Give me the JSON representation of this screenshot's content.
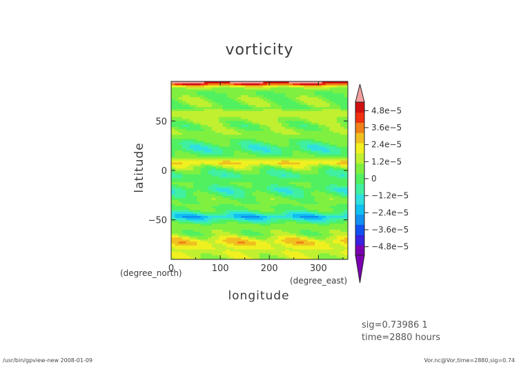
{
  "chart_data": {
    "type": "heatmap",
    "title": "vorticity",
    "xlabel": "longitude",
    "ylabel": "latitude",
    "x_unit": "(degree_east)",
    "y_unit": "(degree_north)",
    "xlim": [
      0,
      360
    ],
    "ylim": [
      -90,
      90
    ],
    "x_ticks": [
      0,
      100,
      200,
      300
    ],
    "y_ticks": [
      -50,
      0,
      50
    ],
    "x_tick_labels": [
      "0",
      "100",
      "200",
      "300"
    ],
    "y_tick_labels": [
      "−50",
      "0",
      "50"
    ],
    "colorbar": {
      "range": [
        -5.4e-05,
        5.4e-05
      ],
      "tick_values": [
        4.8e-05,
        3.6e-05,
        2.4e-05,
        1.2e-05,
        0,
        -1.2e-05,
        -2.4e-05,
        -3.6e-05,
        -4.8e-05
      ],
      "tick_labels": [
        "4.8e−5",
        "3.6e−5",
        "2.4e−5",
        "1.2e−5",
        "0",
        "−1.2e−5",
        "−2.4e−5",
        "−3.6e−5",
        "−4.8e−5"
      ],
      "colors": [
        "#7a00b0",
        "#3a20e0",
        "#1050f0",
        "#1090f0",
        "#10c0f0",
        "#30e0e0",
        "#40f0a0",
        "#50f060",
        "#80f040",
        "#c0f030",
        "#f0f020",
        "#f0c020",
        "#f08018",
        "#f03010",
        "#d01010"
      ],
      "over_color": "#f4a0a0",
      "under_color": "#7a00b0"
    },
    "zonal_mean_lat": [
      -90,
      -80,
      -72,
      -65,
      -55,
      -47,
      -40,
      -30,
      -20,
      -12,
      -5,
      0,
      8,
      15,
      22,
      30,
      38,
      45,
      52,
      58,
      63,
      70,
      78,
      84,
      88,
      90
    ],
    "zonal_mean_vorticity": [
      1.2e-05,
      1.8e-05,
      2.6e-05,
      8e-06,
      6e-06,
      -2e-05,
      2e-06,
      6e-06,
      -6e-06,
      4e-06,
      -4e-06,
      2e-06,
      2.6e-05,
      2e-06,
      -8e-06,
      3e-06,
      1e-05,
      4e-06,
      1.2e-05,
      1.6e-05,
      4e-06,
      9e-06,
      3e-06,
      1.2e-05,
      5.2e-05,
      6e-05
    ]
  },
  "info": {
    "sig_line": "sig=0.73986 1",
    "time_line": "time=2880 hours"
  },
  "footer": {
    "left": "/usr/bin/gpview-new  2008-01-09",
    "right": "Vor.nc@Vor,time=2880,sig=0.74"
  }
}
